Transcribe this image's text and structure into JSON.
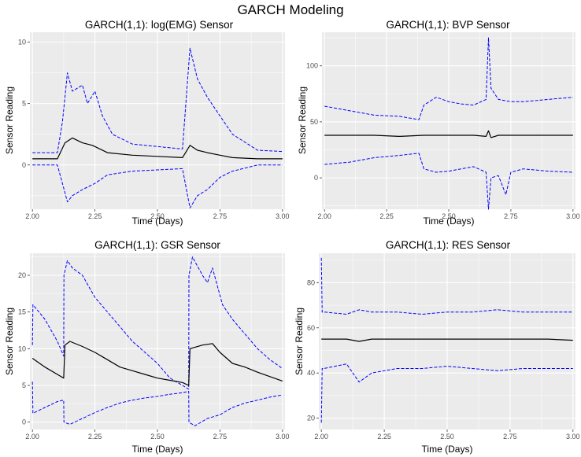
{
  "figure": {
    "title": "GARCH Modeling"
  },
  "colors": {
    "panel_bg": "#ebebeb",
    "grid": "#ffffff",
    "mean_line": "#000000",
    "band_line": "#0000ff",
    "tick_text": "#4d4d4d"
  },
  "chart_data": [
    {
      "type": "line",
      "title": "GARCH(1,1): log(EMG) Sensor",
      "xlabel": "Time (Days)",
      "ylabel": "Sensor Reading",
      "xlim": [
        1.99,
        3.01
      ],
      "ylim": [
        -3.6,
        10.8
      ],
      "xticks": [
        2.0,
        2.25,
        2.5,
        2.75,
        3.0
      ],
      "xtick_labels": [
        "2.00",
        "2.25",
        "2.50",
        "2.75",
        "3.00"
      ],
      "yticks": [
        0,
        5,
        10
      ],
      "ytick_labels": [
        "0",
        "5",
        "10"
      ],
      "grid": true,
      "series": [
        {
          "role": "upper",
          "style": "dashed",
          "color": "#0000ff",
          "x": [
            2.0,
            2.1,
            2.12,
            2.14,
            2.16,
            2.2,
            2.22,
            2.25,
            2.28,
            2.32,
            2.4,
            2.5,
            2.6,
            2.63,
            2.66,
            2.7,
            2.75,
            2.8,
            2.9,
            3.0
          ],
          "y": [
            1.0,
            1.0,
            3.5,
            7.5,
            6.0,
            6.5,
            5.0,
            6.0,
            4.0,
            2.5,
            1.7,
            1.5,
            1.3,
            9.5,
            7.0,
            5.5,
            4.0,
            2.5,
            1.2,
            1.1
          ]
        },
        {
          "role": "mean",
          "style": "solid",
          "color": "#000000",
          "x": [
            2.0,
            2.1,
            2.13,
            2.16,
            2.2,
            2.24,
            2.3,
            2.4,
            2.5,
            2.6,
            2.63,
            2.66,
            2.7,
            2.75,
            2.8,
            2.9,
            3.0
          ],
          "y": [
            0.5,
            0.5,
            1.8,
            2.2,
            1.8,
            1.6,
            1.0,
            0.8,
            0.7,
            0.6,
            1.6,
            1.2,
            1.0,
            0.8,
            0.6,
            0.5,
            0.5
          ]
        },
        {
          "role": "lower",
          "style": "dashed",
          "color": "#0000ff",
          "x": [
            2.0,
            2.1,
            2.12,
            2.14,
            2.16,
            2.2,
            2.25,
            2.3,
            2.4,
            2.5,
            2.6,
            2.63,
            2.66,
            2.7,
            2.75,
            2.8,
            2.9,
            3.0
          ],
          "y": [
            0.0,
            0.0,
            -1.5,
            -3.0,
            -2.5,
            -2.0,
            -1.5,
            -0.8,
            -0.5,
            -0.4,
            -0.3,
            -3.5,
            -2.5,
            -2.0,
            -1.0,
            -0.5,
            0.0,
            0.0
          ]
        }
      ]
    },
    {
      "type": "line",
      "title": "GARCH(1,1): BVP Sensor",
      "xlabel": "Time (Days)",
      "ylabel": "Sensor Reading",
      "xlim": [
        1.99,
        3.01
      ],
      "ylim": [
        -28,
        130
      ],
      "xticks": [
        2.0,
        2.25,
        2.5,
        2.75,
        3.0
      ],
      "xtick_labels": [
        "2.00",
        "2.25",
        "2.50",
        "2.75",
        "3.00"
      ],
      "yticks": [
        0,
        50,
        100
      ],
      "ytick_labels": [
        "0",
        "50",
        "100"
      ],
      "grid": true,
      "series": [
        {
          "role": "upper",
          "style": "dashed",
          "color": "#0000ff",
          "x": [
            2.0,
            2.1,
            2.2,
            2.3,
            2.38,
            2.4,
            2.45,
            2.5,
            2.55,
            2.6,
            2.65,
            2.66,
            2.67,
            2.7,
            2.75,
            2.8,
            2.9,
            3.0
          ],
          "y": [
            64,
            60,
            56,
            55,
            52,
            65,
            72,
            68,
            66,
            65,
            70,
            125,
            80,
            70,
            68,
            68,
            70,
            72
          ]
        },
        {
          "role": "mean",
          "style": "solid",
          "color": "#000000",
          "x": [
            2.0,
            2.1,
            2.2,
            2.3,
            2.4,
            2.5,
            2.6,
            2.65,
            2.66,
            2.67,
            2.7,
            2.8,
            2.9,
            3.0
          ],
          "y": [
            38,
            38,
            38,
            37,
            38,
            38,
            38,
            37,
            42,
            36,
            38,
            38,
            38,
            38
          ]
        },
        {
          "role": "lower",
          "style": "dashed",
          "color": "#0000ff",
          "x": [
            2.0,
            2.1,
            2.2,
            2.3,
            2.38,
            2.4,
            2.45,
            2.5,
            2.55,
            2.6,
            2.65,
            2.66,
            2.67,
            2.7,
            2.73,
            2.75,
            2.8,
            2.9,
            3.0
          ],
          "y": [
            12,
            14,
            18,
            20,
            22,
            8,
            5,
            6,
            8,
            10,
            5,
            -28,
            0,
            2,
            -15,
            5,
            8,
            6,
            5
          ]
        }
      ]
    },
    {
      "type": "line",
      "title": "GARCH(1,1): GSR Sensor",
      "xlabel": "Time (Days)",
      "ylabel": "Sensor Reading",
      "xlim": [
        1.99,
        3.01
      ],
      "ylim": [
        -1,
        23
      ],
      "xticks": [
        2.0,
        2.25,
        2.5,
        2.75,
        3.0
      ],
      "xtick_labels": [
        "2.00",
        "2.25",
        "2.50",
        "2.75",
        "3.00"
      ],
      "yticks": [
        0,
        5,
        10,
        15,
        20
      ],
      "ytick_labels": [
        "0",
        "5",
        "10",
        "15",
        "20"
      ],
      "grid": true,
      "series": [
        {
          "role": "upper",
          "style": "dashed",
          "color": "#0000ff",
          "x": [
            2.0,
            2.002,
            2.05,
            2.1,
            2.125,
            2.126,
            2.14,
            2.16,
            2.2,
            2.25,
            2.3,
            2.35,
            2.4,
            2.45,
            2.5,
            2.55,
            2.6,
            2.625,
            2.626,
            2.64,
            2.68,
            2.7,
            2.72,
            2.76,
            2.8,
            2.85,
            2.9,
            2.95,
            3.0
          ],
          "y": [
            10.5,
            16,
            14,
            11,
            9,
            20,
            22,
            21,
            20,
            17,
            15,
            13,
            11,
            9.5,
            8,
            6,
            5,
            4.5,
            20,
            22.5,
            20,
            19,
            21,
            16,
            14,
            12,
            10,
            8.5,
            7.3
          ]
        },
        {
          "role": "mean",
          "style": "solid",
          "color": "#000000",
          "x": [
            2.0,
            2.05,
            2.1,
            2.125,
            2.13,
            2.15,
            2.2,
            2.25,
            2.3,
            2.35,
            2.4,
            2.45,
            2.5,
            2.55,
            2.6,
            2.625,
            2.63,
            2.68,
            2.72,
            2.75,
            2.8,
            2.85,
            2.9,
            2.95,
            3.0
          ],
          "y": [
            8.7,
            7.5,
            6.5,
            6.0,
            10.5,
            11,
            10.3,
            9.5,
            8.5,
            7.5,
            7.0,
            6.5,
            6.0,
            5.7,
            5.4,
            5.0,
            10,
            10.5,
            10.7,
            9.5,
            8.0,
            7.5,
            6.8,
            6.2,
            5.6
          ]
        },
        {
          "role": "lower",
          "style": "dashed",
          "color": "#0000ff",
          "x": [
            2.0,
            2.002,
            2.05,
            2.1,
            2.125,
            2.126,
            2.15,
            2.2,
            2.25,
            2.3,
            2.35,
            2.4,
            2.45,
            2.5,
            2.55,
            2.6,
            2.625,
            2.626,
            2.65,
            2.7,
            2.75,
            2.8,
            2.85,
            2.9,
            2.95,
            3.0
          ],
          "y": [
            5.5,
            1.2,
            2.0,
            2.8,
            3.0,
            0.0,
            -0.3,
            0.5,
            1.3,
            2.0,
            2.6,
            3.0,
            3.3,
            3.5,
            3.8,
            4.0,
            4.2,
            0.0,
            -0.5,
            0.5,
            1.0,
            2.0,
            2.6,
            3.0,
            3.4,
            3.7
          ]
        }
      ]
    },
    {
      "type": "line",
      "title": "GARCH(1,1): RES Sensor",
      "xlabel": "Time (Days)",
      "ylabel": "Sensor Reading",
      "xlim": [
        1.99,
        3.01
      ],
      "ylim": [
        15,
        93
      ],
      "xticks": [
        2.0,
        2.25,
        2.5,
        2.75,
        3.0
      ],
      "xtick_labels": [
        "2.00",
        "2.25",
        "2.50",
        "2.75",
        "3.00"
      ],
      "yticks": [
        20,
        40,
        60,
        80
      ],
      "ytick_labels": [
        "20",
        "40",
        "60",
        "80"
      ],
      "grid": true,
      "series": [
        {
          "role": "upper",
          "style": "dashed",
          "color": "#0000ff",
          "x": [
            2.0,
            2.003,
            2.01,
            2.1,
            2.15,
            2.2,
            2.3,
            2.4,
            2.5,
            2.6,
            2.7,
            2.8,
            2.9,
            3.0
          ],
          "y": [
            91,
            67,
            67,
            66,
            68,
            67,
            67,
            66,
            67,
            67,
            68,
            67,
            67,
            67
          ]
        },
        {
          "role": "mean",
          "style": "solid",
          "color": "#000000",
          "x": [
            2.0,
            2.05,
            2.1,
            2.15,
            2.2,
            2.3,
            2.4,
            2.5,
            2.6,
            2.7,
            2.8,
            2.9,
            3.0
          ],
          "y": [
            55,
            55,
            55,
            54,
            55,
            55,
            55,
            55,
            55,
            55,
            55,
            55,
            54.5
          ]
        },
        {
          "role": "lower",
          "style": "dashed",
          "color": "#0000ff",
          "x": [
            2.0,
            2.003,
            2.01,
            2.1,
            2.15,
            2.2,
            2.3,
            2.4,
            2.5,
            2.6,
            2.7,
            2.8,
            2.9,
            3.0
          ],
          "y": [
            18,
            42,
            42,
            44,
            36,
            40,
            42,
            42,
            43,
            42,
            41,
            42,
            42,
            42
          ]
        }
      ]
    }
  ]
}
